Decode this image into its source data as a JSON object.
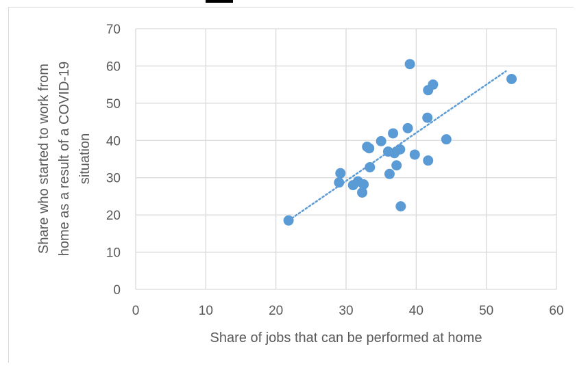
{
  "chart_data": {
    "type": "scatter",
    "title": "",
    "xlabel": "Share of jobs that can be performed at home",
    "ylabel_lines": [
      "Share who started to work from",
      "home as a result of a COVID-19",
      "situation"
    ],
    "xlim": [
      0,
      60
    ],
    "ylim": [
      0,
      70
    ],
    "x_ticks": [
      0,
      10,
      20,
      30,
      40,
      50,
      60
    ],
    "y_ticks": [
      0,
      10,
      20,
      30,
      40,
      50,
      60,
      70
    ],
    "grid": true,
    "legend": "none",
    "points": [
      {
        "x": 21.8,
        "y": 18.5
      },
      {
        "x": 29.0,
        "y": 28.7
      },
      {
        "x": 29.2,
        "y": 31.2
      },
      {
        "x": 31.0,
        "y": 28.0
      },
      {
        "x": 31.7,
        "y": 29.0
      },
      {
        "x": 32.3,
        "y": 26.0
      },
      {
        "x": 32.5,
        "y": 28.2
      },
      {
        "x": 33.0,
        "y": 38.3
      },
      {
        "x": 33.3,
        "y": 37.9
      },
      {
        "x": 33.4,
        "y": 32.8
      },
      {
        "x": 35.0,
        "y": 39.8
      },
      {
        "x": 36.0,
        "y": 37.0
      },
      {
        "x": 36.2,
        "y": 31.0
      },
      {
        "x": 36.7,
        "y": 41.9
      },
      {
        "x": 36.9,
        "y": 36.6
      },
      {
        "x": 37.2,
        "y": 33.3
      },
      {
        "x": 37.7,
        "y": 37.6
      },
      {
        "x": 37.8,
        "y": 22.3
      },
      {
        "x": 38.8,
        "y": 43.3
      },
      {
        "x": 39.1,
        "y": 60.5
      },
      {
        "x": 39.8,
        "y": 36.2
      },
      {
        "x": 41.6,
        "y": 46.1
      },
      {
        "x": 41.7,
        "y": 53.5
      },
      {
        "x": 41.7,
        "y": 34.6
      },
      {
        "x": 42.4,
        "y": 55.0
      },
      {
        "x": 44.3,
        "y": 40.3
      },
      {
        "x": 53.6,
        "y": 56.5
      }
    ],
    "trendline": {
      "style": "dotted",
      "x_start": 21.8,
      "y_start": 18.5,
      "x_end": 52.8,
      "y_end": 58.6
    },
    "colors": {
      "marker": "#5b9bd5",
      "trend": "#5b9bd5",
      "grid": "#d9d9d9",
      "text": "#595959"
    }
  }
}
